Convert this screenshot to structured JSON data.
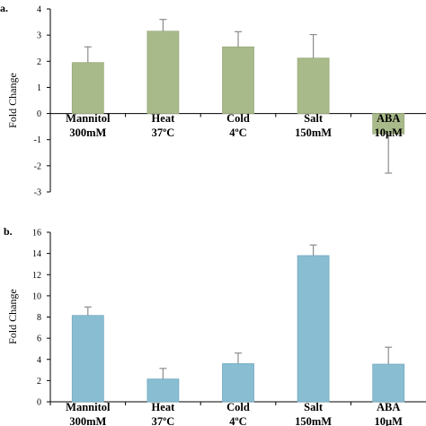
{
  "chart_data": [
    {
      "panel_label": "a.",
      "type": "bar",
      "ylabel": "Fold Change",
      "ylim": [
        -3,
        4
      ],
      "yticks": [
        "-3",
        "-2",
        "-1",
        "0",
        "1",
        "2",
        "3",
        "4"
      ],
      "categories": [
        [
          "Mannitol",
          "300mM"
        ],
        [
          "Heat",
          "37ºC"
        ],
        [
          "Cold",
          "4ºC"
        ],
        [
          "Salt",
          "150mM"
        ],
        [
          "ABA",
          "10μM"
        ]
      ],
      "values": [
        1.95,
        3.15,
        2.55,
        2.12,
        -0.78
      ],
      "errors": [
        0.6,
        0.45,
        0.58,
        0.9,
        1.5
      ],
      "bar_color": "#a9ba8a",
      "edge_color": "#9aaa7d"
    },
    {
      "panel_label": "b.",
      "type": "bar",
      "ylabel": "Fold Change",
      "ylim": [
        0,
        16
      ],
      "yticks": [
        "0",
        "2",
        "4",
        "6",
        "8",
        "10",
        "12",
        "14",
        "16"
      ],
      "categories": [
        [
          "Mannitol",
          "300mM"
        ],
        [
          "Heat",
          "37ºC"
        ],
        [
          "Cold",
          "4ºC"
        ],
        [
          "Salt",
          "150mM"
        ],
        [
          "ABA",
          "10μM"
        ]
      ],
      "values": [
        8.15,
        2.15,
        3.6,
        13.8,
        3.55
      ],
      "errors": [
        0.8,
        1.0,
        1.0,
        1.0,
        1.6
      ],
      "bar_color": "#88bdd2",
      "edge_color": "#74abc2"
    }
  ]
}
